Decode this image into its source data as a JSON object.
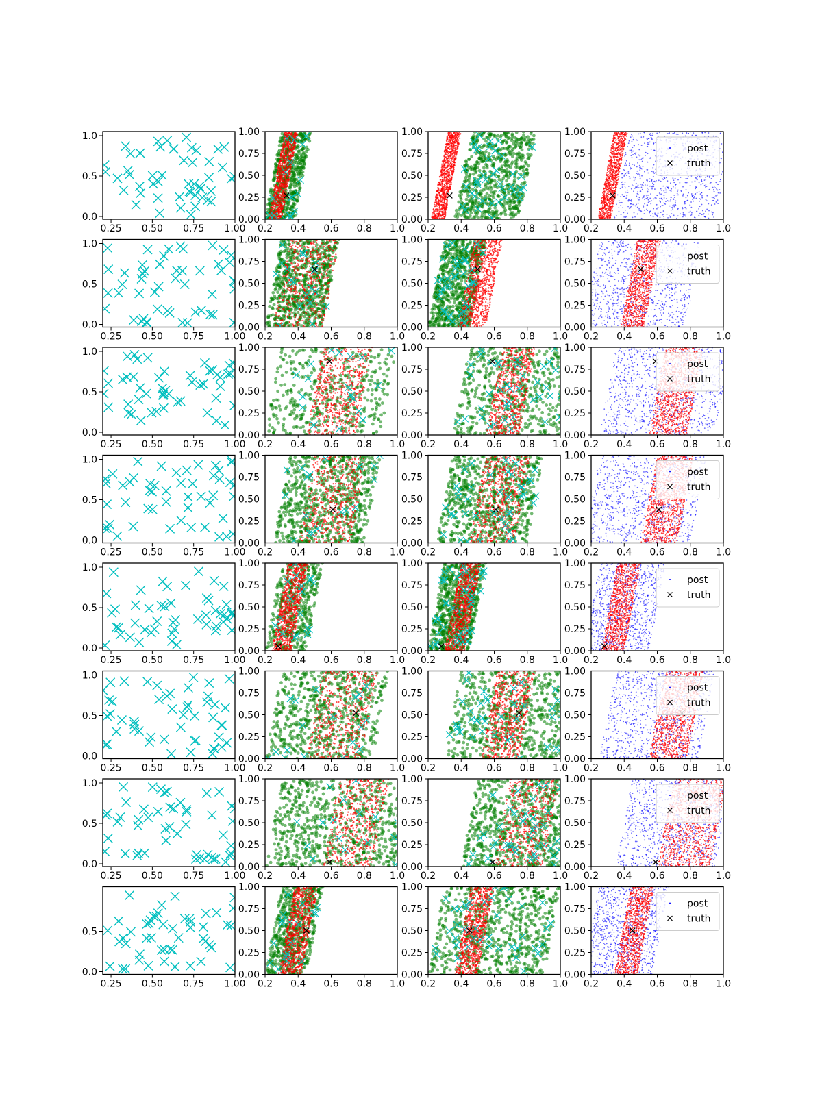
{
  "figure": {
    "rows": 8,
    "cols": 4,
    "colors": {
      "cyan": "#00bfbf",
      "red": "#ff0000",
      "green": "#008000",
      "blue": "#0000ff",
      "black": "#000000"
    }
  },
  "legend": {
    "labels": [
      "post",
      "truth"
    ]
  },
  "chart_data": {
    "type": "scatter",
    "col1": {
      "xlim": [
        0.2,
        1.0
      ],
      "xticks": [
        "0.25",
        "0.50",
        "0.75",
        "1.00"
      ],
      "yticks_full": [
        "0.0",
        "0.5",
        "1.0"
      ],
      "yticks_last": [
        "0.0",
        "0.5"
      ]
    },
    "cols234": {
      "xlim": [
        0.2,
        1.0
      ],
      "ylim": [
        0.0,
        1.0
      ],
      "xticks": [
        "0.2",
        "0.4",
        "0.6",
        "0.8",
        "1.0"
      ],
      "yticks": [
        "0.00",
        "0.25",
        "0.50",
        "0.75",
        "1.00"
      ]
    },
    "rows": [
      {
        "truth": [
          0.33,
          0.27
        ],
        "col2": {
          "red_band": [
            0.22,
            0.3
          ],
          "green_x": [
            0.2,
            0.38
          ],
          "red_density": 1.0,
          "green_density": 0.8
        },
        "col3": {
          "red_band": [
            0.22,
            0.3
          ],
          "green_x": [
            0.36,
            0.75
          ],
          "red_density": 1.0,
          "green_density": 1.0
        },
        "col4": {
          "red_band": [
            0.24,
            0.32
          ],
          "blue_x": [
            0.38,
            1.0
          ]
        },
        "legend": true
      },
      {
        "truth": [
          0.5,
          0.66
        ],
        "col2": {
          "red_band": [
            0.25,
            0.55
          ],
          "green_x": [
            0.2,
            0.55
          ],
          "red_density": 0.6,
          "green_density": 1.0
        },
        "col3": {
          "red_band": [
            0.38,
            0.55
          ],
          "green_x": [
            0.2,
            0.45
          ],
          "red_density": 1.0,
          "green_density": 1.0
        },
        "col4": {
          "red_band": [
            0.38,
            0.52
          ],
          "blue_x": [
            0.2,
            0.82
          ]
        },
        "legend": true
      },
      {
        "truth": [
          0.59,
          0.84
        ],
        "col2": {
          "red_band": [
            0.45,
            0.75
          ],
          "green_x": [
            0.2,
            0.9
          ],
          "red_density": 0.7,
          "green_density": 0.6
        },
        "col3": {
          "red_band": [
            0.55,
            0.75
          ],
          "green_x": [
            0.35,
            1.0
          ],
          "red_density": 0.8,
          "green_density": 0.8
        },
        "col4": {
          "red_band": [
            0.55,
            0.78
          ],
          "blue_x": [
            0.3,
            1.0
          ]
        },
        "legend": true
      },
      {
        "truth": [
          0.61,
          0.38
        ],
        "col2": {
          "red_band": [
            0.4,
            0.72
          ],
          "green_x": [
            0.25,
            0.8
          ],
          "red_density": 0.6,
          "green_density": 1.0
        },
        "col3": {
          "red_band": [
            0.45,
            0.72
          ],
          "green_x": [
            0.25,
            0.8
          ],
          "red_density": 0.7,
          "green_density": 1.0
        },
        "col4": {
          "red_band": [
            0.5,
            0.72
          ],
          "blue_x": [
            0.2,
            0.85
          ]
        },
        "legend": true
      },
      {
        "truth": [
          0.28,
          0.05
        ],
        "col2": {
          "red_band": [
            0.24,
            0.36
          ],
          "green_x": [
            0.2,
            0.45
          ],
          "red_density": 1.0,
          "green_density": 0.6
        },
        "col3": {
          "red_band": [
            0.3,
            0.42
          ],
          "green_x": [
            0.2,
            0.45
          ],
          "red_density": 1.0,
          "green_density": 1.0
        },
        "col4": {
          "red_band": [
            0.26,
            0.4
          ],
          "blue_x": [
            0.2,
            0.6
          ]
        },
        "legend": true
      },
      {
        "truth": [
          0.75,
          0.52
        ],
        "col2": {
          "red_band": [
            0.45,
            0.78
          ],
          "green_x": [
            0.2,
            0.85
          ],
          "red_density": 0.6,
          "green_density": 0.9
        },
        "col3": {
          "red_band": [
            0.52,
            0.75
          ],
          "green_x": [
            0.3,
            1.0
          ],
          "red_density": 0.8,
          "green_density": 0.9
        },
        "col4": {
          "red_band": [
            0.55,
            0.78
          ],
          "blue_x": [
            0.3,
            0.9
          ]
        },
        "legend": true
      },
      {
        "truth": [
          0.59,
          0.05
        ],
        "col2": {
          "red_band": [
            0.55,
            0.85
          ],
          "green_x": [
            0.2,
            1.0
          ],
          "red_density": 0.6,
          "green_density": 1.0
        },
        "col3": {
          "red_band": [
            0.6,
            0.9
          ],
          "green_x": [
            0.4,
            1.0
          ],
          "red_density": 0.6,
          "green_density": 1.0
        },
        "col4": {
          "red_band": [
            0.6,
            0.92
          ],
          "blue_x": [
            0.4,
            1.0
          ]
        },
        "legend": true
      },
      {
        "truth": [
          0.45,
          0.5
        ],
        "col2": {
          "red_band": [
            0.28,
            0.42
          ],
          "green_x": [
            0.2,
            0.45
          ],
          "red_density": 1.0,
          "green_density": 0.8
        },
        "col3": {
          "red_band": [
            0.36,
            0.5
          ],
          "green_x": [
            0.2,
            0.9
          ],
          "red_density": 1.0,
          "green_density": 1.0
        },
        "col4": {
          "red_band": [
            0.34,
            0.48
          ],
          "blue_x": [
            0.2,
            0.62
          ]
        },
        "legend": true
      }
    ]
  }
}
